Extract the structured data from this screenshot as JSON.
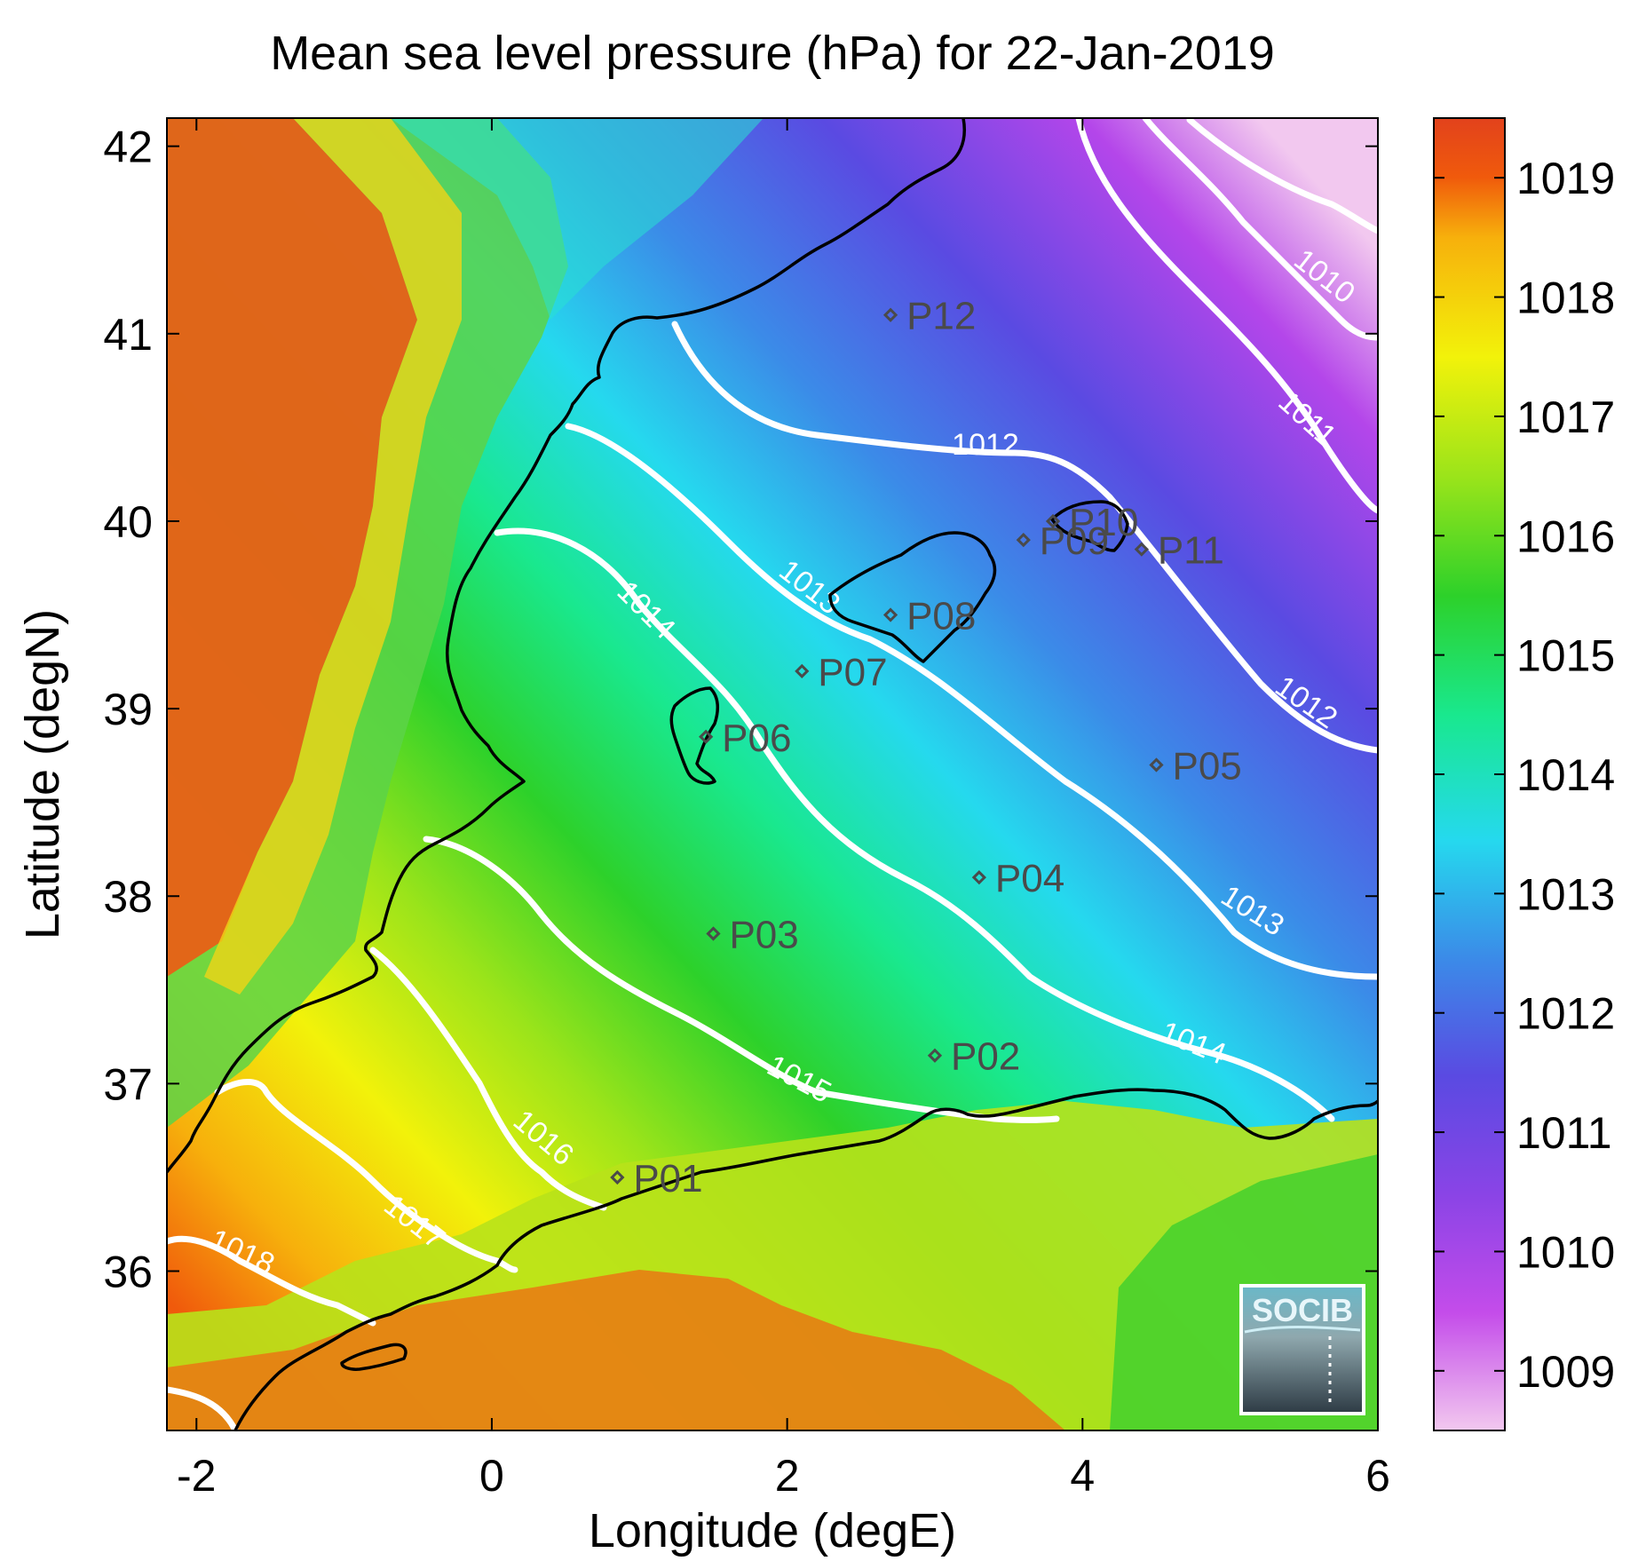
{
  "title": "Mean sea level pressure (hPa) for 22-Jan-2019",
  "xlabel": "Longitude (degE)",
  "ylabel": "Latitude (degN)",
  "logo_text": "SOCIB",
  "chart_data": {
    "type": "heatmap",
    "title": "Mean sea level pressure (hPa) for 22-Jan-2019",
    "xlabel": "Longitude (degE)",
    "ylabel": "Latitude (degN)",
    "xlim": [
      -2.2,
      6
    ],
    "ylim": [
      35.15,
      42.15
    ],
    "xticks": [
      -2,
      0,
      2,
      4,
      6
    ],
    "xtick_labels": [
      "-2",
      "0",
      "2",
      "4",
      "6"
    ],
    "yticks": [
      36,
      37,
      38,
      39,
      40,
      41,
      42
    ],
    "ytick_labels": [
      "36",
      "37",
      "38",
      "39",
      "40",
      "41",
      "42"
    ],
    "colorbar": {
      "range": [
        1008.5,
        1019.5
      ],
      "ticks": [
        1009,
        1010,
        1011,
        1012,
        1013,
        1014,
        1015,
        1016,
        1017,
        1018,
        1019
      ],
      "tick_labels": [
        "1009",
        "1010",
        "1011",
        "1012",
        "1013",
        "1014",
        "1015",
        "1016",
        "1017",
        "1018",
        "1019"
      ],
      "colormap": [
        "#f2c8ef",
        "#c44cea",
        "#6a3fe0",
        "#3b8be8",
        "#25d9ee",
        "#19e88e",
        "#2dd12a",
        "#9be41a",
        "#f2f20a",
        "#f7b00c",
        "#f05a0c",
        "#e2421c"
      ]
    },
    "contour_levels": [
      1010,
      1011,
      1012,
      1013,
      1014,
      1015,
      1016,
      1017,
      1018
    ],
    "stations": [
      {
        "name": "P01",
        "lon": 0.85,
        "lat": 36.5
      },
      {
        "name": "P02",
        "lon": 3.0,
        "lat": 37.15
      },
      {
        "name": "P03",
        "lon": 1.5,
        "lat": 37.8
      },
      {
        "name": "P04",
        "lon": 3.3,
        "lat": 38.1
      },
      {
        "name": "P05",
        "lon": 4.5,
        "lat": 38.7
      },
      {
        "name": "P06",
        "lon": 1.45,
        "lat": 38.85
      },
      {
        "name": "P07",
        "lon": 2.1,
        "lat": 39.2
      },
      {
        "name": "P08",
        "lon": 2.7,
        "lat": 39.5
      },
      {
        "name": "P09",
        "lon": 3.6,
        "lat": 39.9
      },
      {
        "name": "P10",
        "lon": 3.8,
        "lat": 40.0
      },
      {
        "name": "P11",
        "lon": 4.4,
        "lat": 39.85
      },
      {
        "name": "P12",
        "lon": 2.7,
        "lat": 41.1
      }
    ]
  }
}
